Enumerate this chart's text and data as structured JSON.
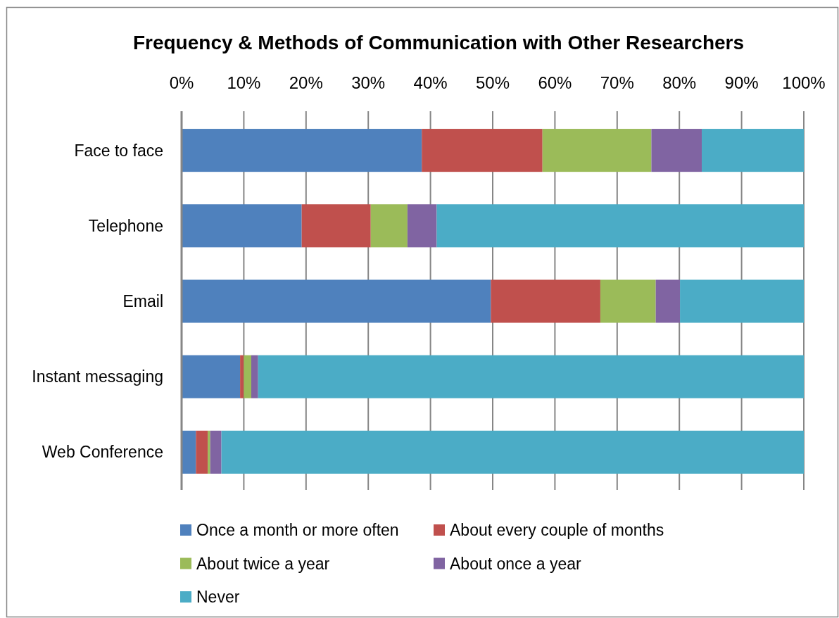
{
  "chart_data": {
    "type": "bar",
    "orientation": "horizontal",
    "stacked": true,
    "title": "Frequency & Methods of Communication with Other Researchers",
    "categories": [
      "Face to face",
      "Telephone",
      "Email",
      "Instant messaging",
      "Web Conference"
    ],
    "series": [
      {
        "name": "Once a month or more often",
        "color": "#4f81bd",
        "values": [
          38.6,
          19.3,
          49.7,
          9.4,
          2.3
        ]
      },
      {
        "name": "About every couple of months",
        "color": "#c0504d",
        "values": [
          19.4,
          11.1,
          17.6,
          0.6,
          1.9
        ]
      },
      {
        "name": "About twice a year",
        "color": "#9bbb59",
        "values": [
          17.5,
          5.9,
          8.9,
          1.2,
          0.4
        ]
      },
      {
        "name": "About once a year",
        "color": "#8064a2",
        "values": [
          8.1,
          4.7,
          3.9,
          1.1,
          1.8
        ]
      },
      {
        "name": "Never",
        "color": "#4bacc6",
        "values": [
          16.4,
          59.0,
          19.9,
          87.7,
          93.6
        ]
      }
    ],
    "xlim": [
      0,
      100
    ],
    "xticks": [
      {
        "value": 0,
        "label": "0%"
      },
      {
        "value": 10,
        "label": "10%"
      },
      {
        "value": 20,
        "label": "20%"
      },
      {
        "value": 30,
        "label": "30%"
      },
      {
        "value": 40,
        "label": "40%"
      },
      {
        "value": 50,
        "label": "50%"
      },
      {
        "value": 60,
        "label": "60%"
      },
      {
        "value": 70,
        "label": "70%"
      },
      {
        "value": 80,
        "label": "80%"
      },
      {
        "value": 90,
        "label": "90%"
      },
      {
        "value": 100,
        "label": "100%"
      }
    ],
    "grid": "x",
    "legend": "bottom"
  }
}
